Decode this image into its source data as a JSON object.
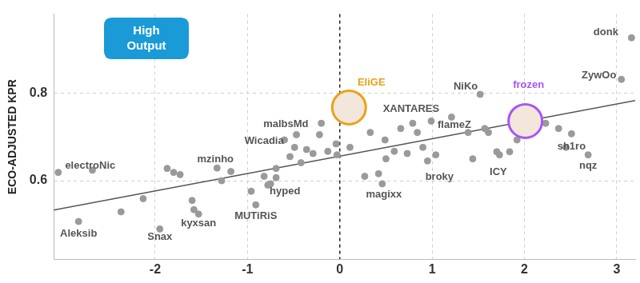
{
  "chart_data": {
    "type": "scatter",
    "y_label": "ECO-ADJUSTED KPR",
    "annotation": "High Output",
    "xlim": [
      -3.1,
      3.2
    ],
    "xticks": [
      -2,
      -1,
      0,
      1,
      2,
      3
    ],
    "ylim": [
      0.42,
      0.98
    ],
    "yticks": [
      0.6,
      0.8
    ],
    "grid": true,
    "series": [
      {
        "type": "scatter",
        "color": "#9a9a9a",
        "marker": "circle",
        "points": [
          {
            "label": "donk",
            "x": 3.16,
            "y": 0.926
          },
          {
            "label": "ZywOo",
            "x": 3.05,
            "y": 0.831
          },
          {
            "label": "frozen",
            "x": 2.01,
            "y": 0.736,
            "color": "#a855f7"
          },
          {
            "label": "NiKo",
            "x": 1.52,
            "y": 0.797
          },
          {
            "label": "EliGE",
            "x": 0.1,
            "y": 0.767,
            "color": "#e8a317"
          },
          {
            "label": "XANTARES",
            "x": 0.79,
            "y": 0.731
          },
          {
            "label": "flameZ",
            "x": 1.57,
            "y": 0.719
          },
          {
            "label": "sh1ro",
            "x": 2.51,
            "y": 0.707
          },
          {
            "label": "nqz",
            "x": 2.69,
            "y": 0.659
          },
          {
            "label": "ICY",
            "x": 1.7,
            "y": 0.666
          },
          {
            "label": "broky",
            "x": 0.95,
            "y": 0.645
          },
          {
            "label": "magixx",
            "x": 0.46,
            "y": 0.593
          },
          {
            "label": "malbsMd",
            "x": -0.22,
            "y": 0.705
          },
          {
            "label": "Wicadia",
            "x": -0.49,
            "y": 0.676
          },
          {
            "label": "mzinho",
            "x": -1.33,
            "y": 0.629
          },
          {
            "label": "electroNic",
            "x": -3.05,
            "y": 0.619
          },
          {
            "label": "hyped",
            "x": -0.75,
            "y": 0.593
          },
          {
            "label": "MUTiRiS",
            "x": -0.91,
            "y": 0.545
          },
          {
            "label": "kyxsan",
            "x": -1.53,
            "y": 0.524
          },
          {
            "label": "Snax",
            "x": -1.95,
            "y": 0.49
          },
          {
            "label": "Aleksib",
            "x": -2.83,
            "y": 0.507
          },
          {
            "label": null,
            "x": -2.68,
            "y": 0.624
          },
          {
            "label": null,
            "x": -2.37,
            "y": 0.529
          },
          {
            "label": null,
            "x": -2.13,
            "y": 0.559
          },
          {
            "label": null,
            "x": -1.87,
            "y": 0.628
          },
          {
            "label": null,
            "x": -1.8,
            "y": 0.619
          },
          {
            "label": null,
            "x": -1.73,
            "y": 0.614
          },
          {
            "label": null,
            "x": -1.6,
            "y": 0.555
          },
          {
            "label": null,
            "x": -1.58,
            "y": 0.534
          },
          {
            "label": null,
            "x": -1.28,
            "y": 0.6
          },
          {
            "label": null,
            "x": -1.18,
            "y": 0.621
          },
          {
            "label": null,
            "x": -0.96,
            "y": 0.576
          },
          {
            "label": null,
            "x": -0.82,
            "y": 0.61
          },
          {
            "label": null,
            "x": -0.78,
            "y": 0.59
          },
          {
            "label": null,
            "x": -0.69,
            "y": 0.628
          },
          {
            "label": null,
            "x": -0.69,
            "y": 0.607
          },
          {
            "label": null,
            "x": -0.6,
            "y": 0.693
          },
          {
            "label": null,
            "x": -0.54,
            "y": 0.655
          },
          {
            "label": null,
            "x": -0.47,
            "y": 0.705
          },
          {
            "label": null,
            "x": -0.42,
            "y": 0.641
          },
          {
            "label": null,
            "x": -0.36,
            "y": 0.671
          },
          {
            "label": null,
            "x": -0.29,
            "y": 0.662
          },
          {
            "label": null,
            "x": -0.2,
            "y": 0.731
          },
          {
            "label": null,
            "x": -0.13,
            "y": 0.667
          },
          {
            "label": null,
            "x": -0.04,
            "y": 0.684
          },
          {
            "label": null,
            "x": -0.03,
            "y": 0.659
          },
          {
            "label": null,
            "x": 0.11,
            "y": 0.676
          },
          {
            "label": null,
            "x": 0.33,
            "y": 0.71
          },
          {
            "label": null,
            "x": 0.49,
            "y": 0.693
          },
          {
            "label": null,
            "x": 0.5,
            "y": 0.65
          },
          {
            "label": null,
            "x": 0.59,
            "y": 0.667
          },
          {
            "label": null,
            "x": 0.66,
            "y": 0.719
          },
          {
            "label": null,
            "x": 0.73,
            "y": 0.662
          },
          {
            "label": null,
            "x": 0.84,
            "y": 0.71
          },
          {
            "label": null,
            "x": 0.9,
            "y": 0.676
          },
          {
            "label": null,
            "x": 0.99,
            "y": 0.736
          },
          {
            "label": null,
            "x": 1.04,
            "y": 0.659
          },
          {
            "label": null,
            "x": 1.21,
            "y": 0.745
          },
          {
            "label": null,
            "x": 1.39,
            "y": 0.71
          },
          {
            "label": null,
            "x": 1.44,
            "y": 0.65
          },
          {
            "label": null,
            "x": 1.61,
            "y": 0.71
          },
          {
            "label": null,
            "x": 1.73,
            "y": 0.659
          },
          {
            "label": null,
            "x": 1.84,
            "y": 0.666
          },
          {
            "label": null,
            "x": 1.92,
            "y": 0.693
          },
          {
            "label": null,
            "x": 2.23,
            "y": 0.731
          },
          {
            "label": null,
            "x": 2.37,
            "y": 0.719
          },
          {
            "label": null,
            "x": 2.45,
            "y": 0.676
          },
          {
            "label": null,
            "x": 0.27,
            "y": 0.61
          },
          {
            "label": null,
            "x": 0.42,
            "y": 0.616
          }
        ]
      },
      {
        "type": "line",
        "color": "#555555",
        "line_style": "solid",
        "x": [
          -3.1,
          3.2
        ],
        "values": [
          0.533,
          0.783
        ]
      }
    ]
  }
}
